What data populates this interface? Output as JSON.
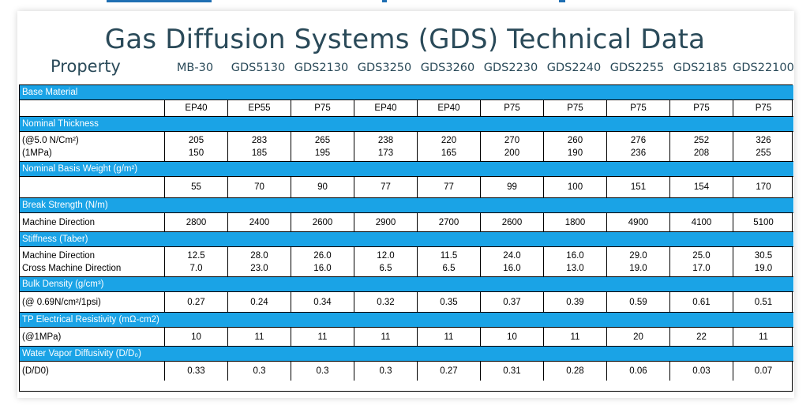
{
  "title": "Gas Diffusion Systems (GDS) Technical Data",
  "property_header": "Property",
  "columns": [
    "MB-30",
    "GDS5130",
    "GDS2130",
    "GDS3250",
    "GDS3260",
    "GDS2230",
    "GDS2240",
    "GDS2255",
    "GDS2185",
    "GDS22100"
  ],
  "sections": [
    {
      "name": "Base Material",
      "rows": [
        {
          "label": [
            ""
          ],
          "values": [
            [
              "EP40"
            ],
            [
              "EP55"
            ],
            [
              "P75"
            ],
            [
              "EP40"
            ],
            [
              "EP40"
            ],
            [
              "P75"
            ],
            [
              "P75"
            ],
            [
              "P75"
            ],
            [
              "P75"
            ],
            [
              "P75"
            ]
          ]
        }
      ]
    },
    {
      "name": "Nominal Thickness",
      "rows": [
        {
          "label": [
            "(@5.0 N/Cm²)",
            "(1MPa)"
          ],
          "values": [
            [
              "205",
              "150"
            ],
            [
              "283",
              "185"
            ],
            [
              "265",
              "195"
            ],
            [
              "238",
              "173"
            ],
            [
              "220",
              "165"
            ],
            [
              "270",
              "200"
            ],
            [
              "260",
              "190"
            ],
            [
              "276",
              "236"
            ],
            [
              "252",
              "208"
            ],
            [
              "326",
              "255"
            ]
          ]
        }
      ]
    },
    {
      "name": "Nominal Basis Weight (g/m²)",
      "rows": [
        {
          "label": [
            ""
          ],
          "values": [
            [
              "55"
            ],
            [
              "70"
            ],
            [
              "90"
            ],
            [
              "77"
            ],
            [
              "77"
            ],
            [
              "99"
            ],
            [
              "100"
            ],
            [
              "151"
            ],
            [
              "154"
            ],
            [
              "170"
            ]
          ]
        }
      ]
    },
    {
      "name": "Break Strength (N/m)",
      "rows": [
        {
          "label": [
            "Machine Direction"
          ],
          "values": [
            [
              "2800"
            ],
            [
              "2400"
            ],
            [
              "2600"
            ],
            [
              "2900"
            ],
            [
              "2700"
            ],
            [
              "2600"
            ],
            [
              "1800"
            ],
            [
              "4900"
            ],
            [
              "4100"
            ],
            [
              "5100"
            ]
          ]
        }
      ]
    },
    {
      "name": "Stiffness (Taber)",
      "rows": [
        {
          "label": [
            "Machine Direction",
            "Cross Machine Direction"
          ],
          "values": [
            [
              "12.5",
              "7.0"
            ],
            [
              "28.0",
              "23.0"
            ],
            [
              "26.0",
              "16.0"
            ],
            [
              "12.0",
              "6.5"
            ],
            [
              "11.5",
              "6.5"
            ],
            [
              "24.0",
              "16.0"
            ],
            [
              "16.0",
              "13.0"
            ],
            [
              "29.0",
              "19.0"
            ],
            [
              "25.0",
              "17.0"
            ],
            [
              "30.5",
              "19.0"
            ]
          ]
        }
      ]
    },
    {
      "name": "Bulk Density (g/cm³)",
      "rows": [
        {
          "label": [
            "(@ 0.69N/cm²/1psi)"
          ],
          "values": [
            [
              "0.27"
            ],
            [
              "0.24"
            ],
            [
              "0.34"
            ],
            [
              "0.32"
            ],
            [
              "0.35"
            ],
            [
              "0.37"
            ],
            [
              "0.39"
            ],
            [
              "0.59"
            ],
            [
              "0.61"
            ],
            [
              "0.51"
            ]
          ]
        }
      ]
    },
    {
      "name": "TP Electrical Resistivity (mΩ-cm2)",
      "rows": [
        {
          "label": [
            "(@1MPa)"
          ],
          "values": [
            [
              "10"
            ],
            [
              "11"
            ],
            [
              "11"
            ],
            [
              "11"
            ],
            [
              "11"
            ],
            [
              "10"
            ],
            [
              "11"
            ],
            [
              "20"
            ],
            [
              "22"
            ],
            [
              "11"
            ]
          ]
        }
      ]
    },
    {
      "name": "Water Vapor Diffusivity (D/D₀)",
      "rows": [
        {
          "label": [
            "(D/D0)"
          ],
          "values": [
            [
              "0.33"
            ],
            [
              "0.3"
            ],
            [
              "0.3"
            ],
            [
              "0.3"
            ],
            [
              "0.27"
            ],
            [
              "0.31"
            ],
            [
              "0.28"
            ],
            [
              "0.06"
            ],
            [
              "0.03"
            ],
            [
              "0.07"
            ]
          ]
        }
      ]
    }
  ]
}
